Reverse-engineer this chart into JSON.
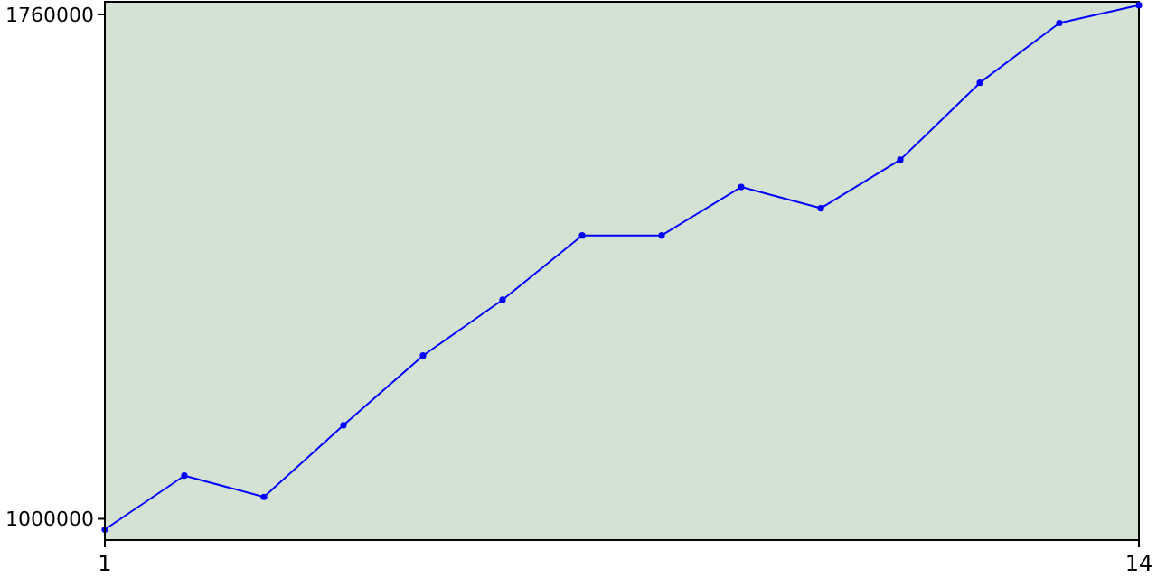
{
  "chart_data": {
    "type": "line",
    "x": [
      1,
      2,
      3,
      4,
      5,
      6,
      7,
      8,
      9,
      10,
      11,
      12,
      13,
      14
    ],
    "series": [
      {
        "color": "#0000ff",
        "values": [
          984000,
          1065000,
          1033000,
          1141000,
          1246000,
          1330000,
          1427000,
          1427000,
          1500000,
          1468000,
          1541000,
          1657000,
          1747000,
          1774000
        ]
      }
    ],
    "xlim": [
      1,
      14
    ],
    "xticks": [
      1,
      14
    ],
    "ylim": [
      968000,
      1779000
    ],
    "yticks": [
      1000000,
      1760000
    ],
    "grid": false,
    "marker": "circle",
    "line_style": "solid"
  }
}
